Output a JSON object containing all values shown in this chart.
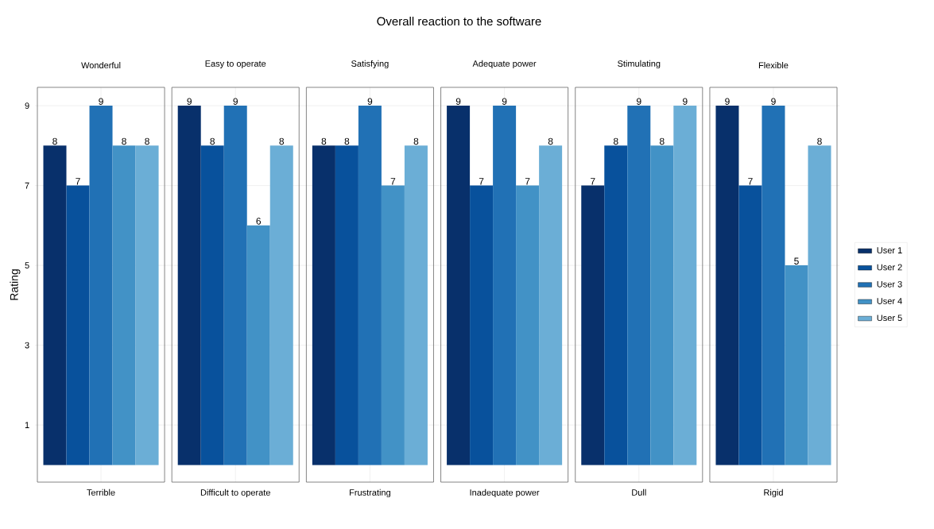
{
  "chart_data": {
    "type": "bar",
    "title": "Overall reaction to the software",
    "ylabel": "Rating",
    "categories": [
      "Terrible",
      "Difficult to operate",
      "Frustrating",
      "Inadequate power",
      "Dull",
      "Rigid"
    ],
    "annotations": [
      "Wonderful",
      "Easy to operate",
      "Satisfying",
      "Adequate power",
      "Stimulating",
      "Flexible"
    ],
    "series": [
      {
        "name": "User 1",
        "color": "#08306b",
        "values": [
          8,
          9,
          8,
          9,
          7,
          9
        ]
      },
      {
        "name": "User 2",
        "color": "#08519c",
        "values": [
          7,
          8,
          8,
          7,
          8,
          7
        ]
      },
      {
        "name": "User 3",
        "color": "#2171b5",
        "values": [
          9,
          9,
          9,
          9,
          9,
          9
        ]
      },
      {
        "name": "User 4",
        "color": "#4292c6",
        "values": [
          8,
          6,
          7,
          7,
          8,
          5
        ]
      },
      {
        "name": "User 5",
        "color": "#6baed6",
        "values": [
          8,
          8,
          8,
          8,
          9,
          8
        ]
      }
    ],
    "ylim": [
      -0.43,
      9.46
    ],
    "yticks": [
      1,
      3,
      5,
      7,
      9
    ],
    "grid": true,
    "data_labels": true,
    "legend": "right"
  }
}
